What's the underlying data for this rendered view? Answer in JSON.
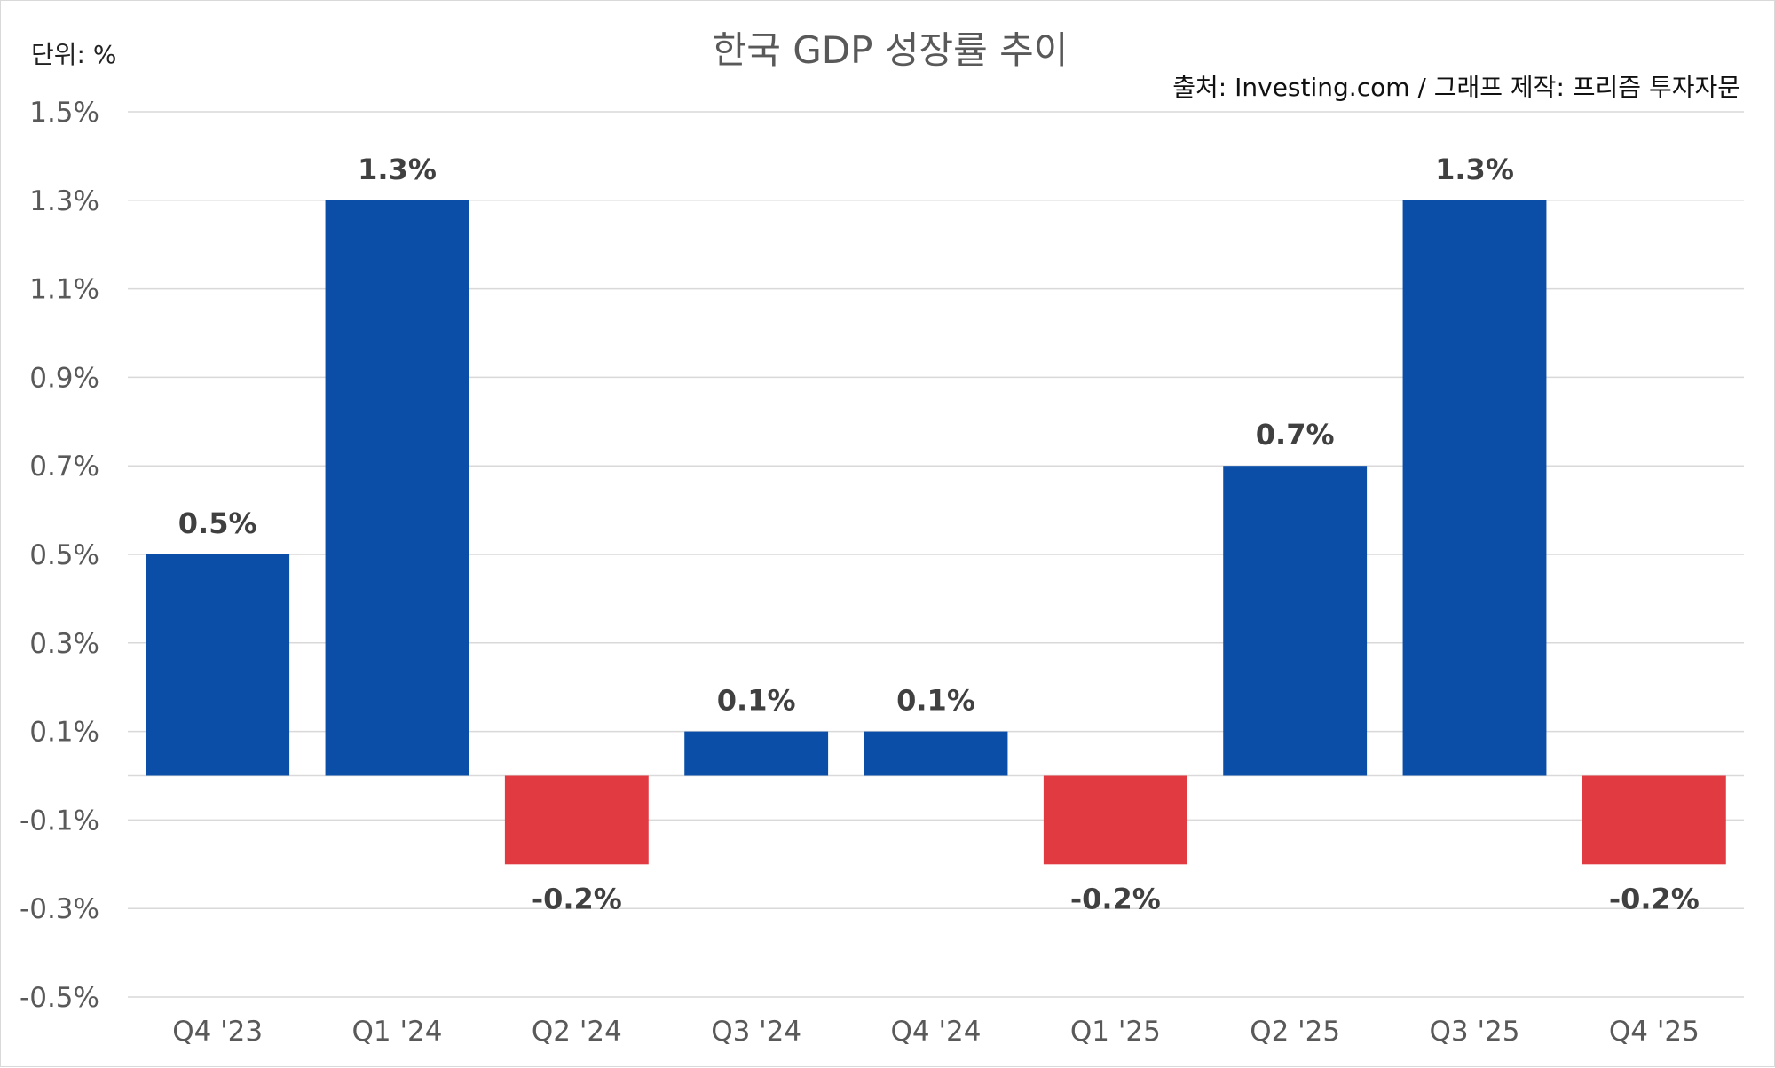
{
  "chart_data": {
    "type": "bar",
    "title": "한국 GDP 성장률 추이",
    "unit_label": "단위: %",
    "source": "출처: Investing.com / 그래프 제작: 프리즘 투자자문",
    "categories": [
      "Q4 '23",
      "Q1 '24",
      "Q2 '24",
      "Q3 '24",
      "Q4 '24",
      "Q1 '25",
      "Q2 '25",
      "Q3 '25",
      "Q4 '25"
    ],
    "values": [
      0.5,
      1.3,
      -0.2,
      0.1,
      0.1,
      -0.2,
      0.7,
      1.3,
      -0.2
    ],
    "data_labels": [
      "0.5%",
      "1.3%",
      "-0.2%",
      "0.1%",
      "0.1%",
      "-0.2%",
      "0.7%",
      "1.3%",
      "-0.2%"
    ],
    "y_ticks": [
      1.5,
      1.3,
      1.1,
      0.9,
      0.7,
      0.5,
      0.3,
      0.1,
      -0.1,
      -0.3,
      -0.5
    ],
    "y_tick_labels": [
      "1.5%",
      "1.3%",
      "1.1%",
      "0.9%",
      "0.7%",
      "0.5%",
      "0.3%",
      "0.1%",
      "-0.1%",
      "-0.3%",
      "-0.5%"
    ],
    "ylim": [
      -0.5,
      1.5
    ],
    "grid": true,
    "colors": {
      "positive": "#0b4ea8",
      "negative": "#e23a41"
    }
  }
}
